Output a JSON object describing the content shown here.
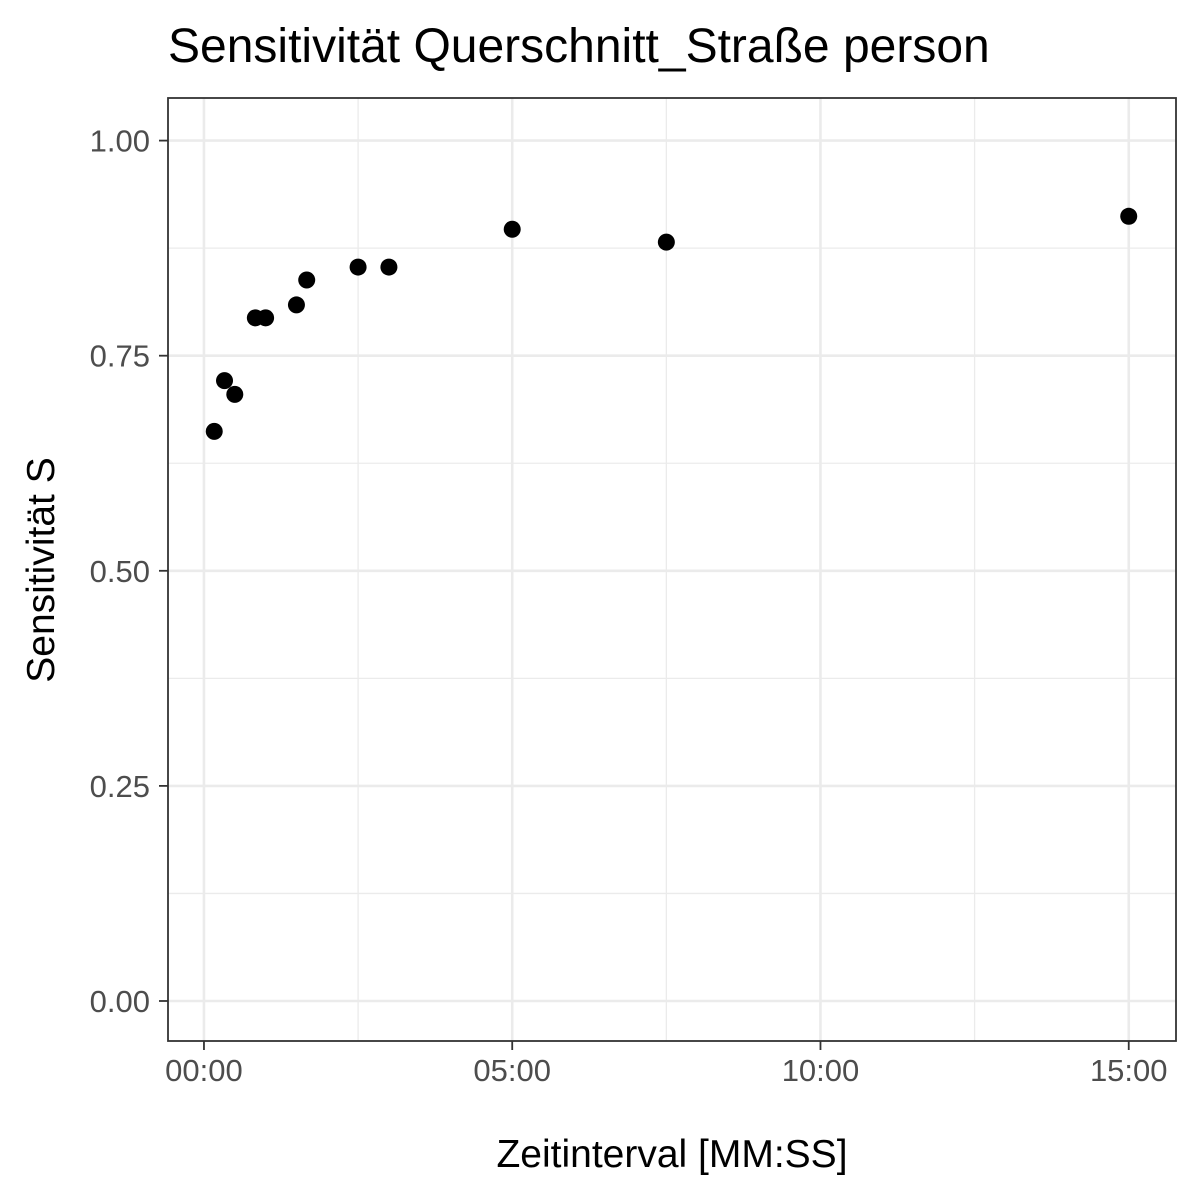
{
  "chart_data": {
    "type": "scatter",
    "title": "Sensitivität Querschnitt_Straße person",
    "xlabel": "Zeitinterval [MM:SS]",
    "ylabel": "Sensitivität S",
    "x_tick_labels": [
      "00:00",
      "05:00",
      "10:00",
      "15:00"
    ],
    "x_tick_values_seconds": [
      0,
      300,
      600,
      900
    ],
    "y_ticks": [
      0.0,
      0.25,
      0.5,
      0.75,
      1.0
    ],
    "y_tick_labels": [
      "0.00",
      "0.25",
      "0.50",
      "0.75",
      "1.00"
    ],
    "xlim_seconds": [
      -35,
      946
    ],
    "ylim": [
      -0.0465,
      1.0495
    ],
    "grid": true,
    "point_color": "#000000",
    "points": [
      {
        "x": "00:10",
        "y": 0.662
      },
      {
        "x": "00:20",
        "y": 0.721
      },
      {
        "x": "00:30",
        "y": 0.705
      },
      {
        "x": "00:50",
        "y": 0.794
      },
      {
        "x": "01:00",
        "y": 0.794
      },
      {
        "x": "01:30",
        "y": 0.809
      },
      {
        "x": "01:40",
        "y": 0.838
      },
      {
        "x": "02:30",
        "y": 0.853
      },
      {
        "x": "03:00",
        "y": 0.853
      },
      {
        "x": "05:00",
        "y": 0.897
      },
      {
        "x": "07:30",
        "y": 0.882
      },
      {
        "x": "15:00",
        "y": 0.912
      }
    ]
  }
}
